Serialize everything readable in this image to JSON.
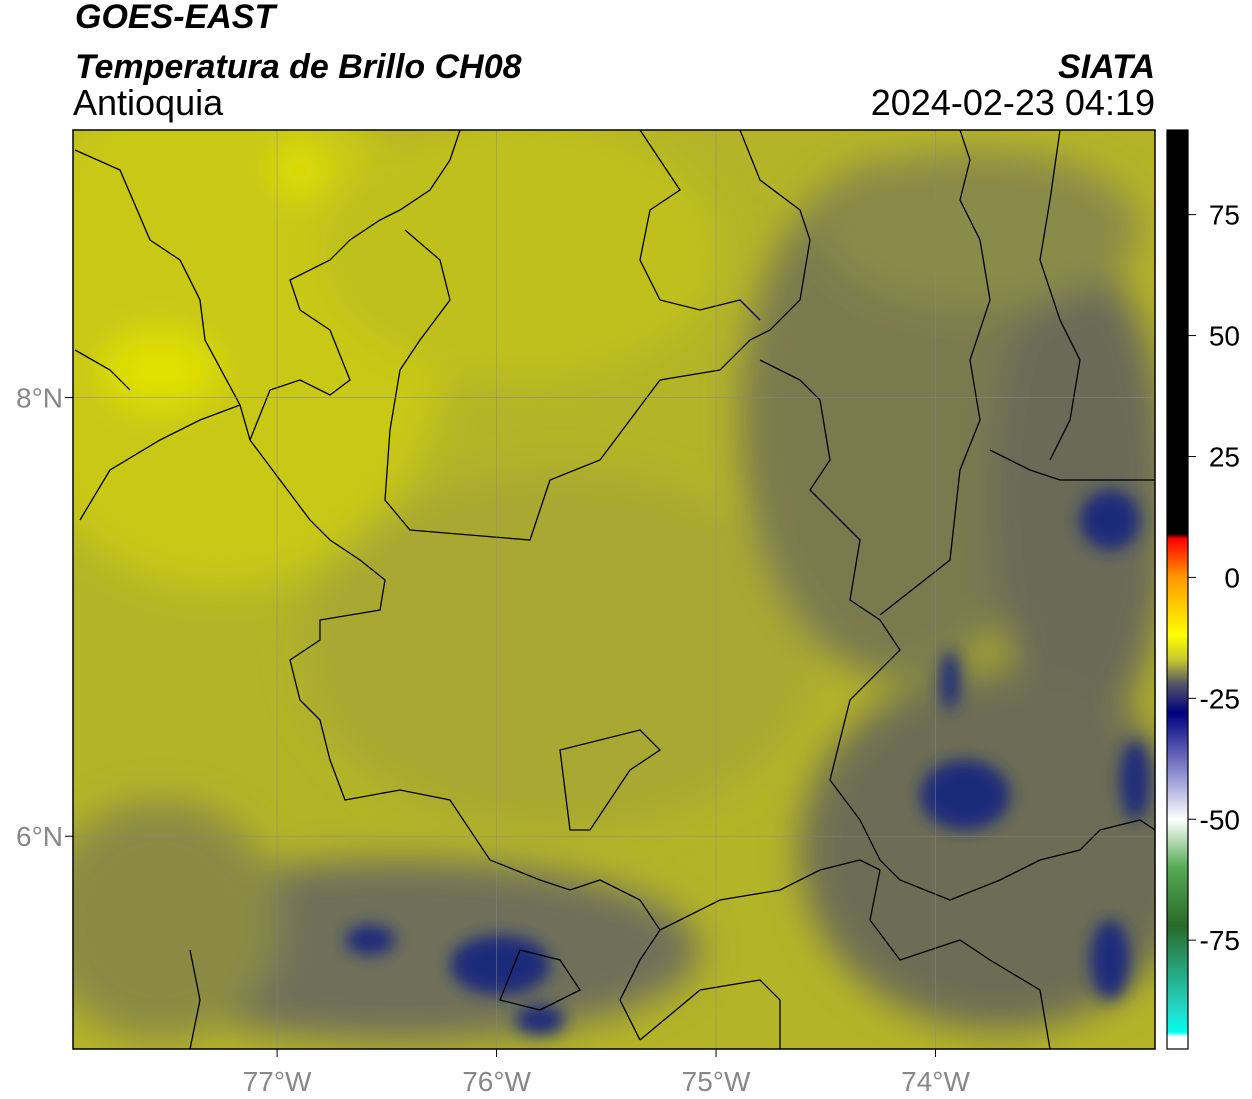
{
  "header": {
    "title": "GOES-EAST",
    "product": "Temperatura de Brillo CH08",
    "agency": "SIATA",
    "region": "Antioquia",
    "timestamp": "2024-02-23 04:19"
  },
  "map": {
    "xlim": [
      -77.93,
      -73.0
    ],
    "ylim": [
      5.03,
      9.22
    ],
    "xticks": [
      {
        "value": -77,
        "label": "77°W"
      },
      {
        "value": -76,
        "label": "76°W"
      },
      {
        "value": -75,
        "label": "75°W"
      },
      {
        "value": -74,
        "label": "74°W"
      }
    ],
    "yticks": [
      {
        "value": 8,
        "label": "8°N"
      },
      {
        "value": 6,
        "label": "6°N"
      }
    ],
    "grid": true
  },
  "colorbar": {
    "lim": [
      -97.5,
      92.5
    ],
    "ticks": [
      75,
      50,
      25,
      0,
      -25,
      -50,
      -75
    ],
    "stops": [
      {
        "value": 92.5,
        "color": "#000000"
      },
      {
        "value": 9,
        "color": "#000000"
      },
      {
        "value": 8,
        "color": "#ff0000"
      },
      {
        "value": 0,
        "color": "#ff9900"
      },
      {
        "value": -12,
        "color": "#ffff00"
      },
      {
        "value": -17,
        "color": "#c8c830"
      },
      {
        "value": -22,
        "color": "#555566"
      },
      {
        "value": -28,
        "color": "#000080"
      },
      {
        "value": -40,
        "color": "#8888cc"
      },
      {
        "value": -50,
        "color": "#ffffff"
      },
      {
        "value": -60,
        "color": "#55aa55"
      },
      {
        "value": -72,
        "color": "#2a6a2a"
      },
      {
        "value": -90,
        "color": "#22ddcc"
      },
      {
        "value": -94,
        "color": "#00ffee"
      },
      {
        "value": -95,
        "color": "#ffffff"
      },
      {
        "value": -97.5,
        "color": "#ffffff"
      }
    ]
  }
}
